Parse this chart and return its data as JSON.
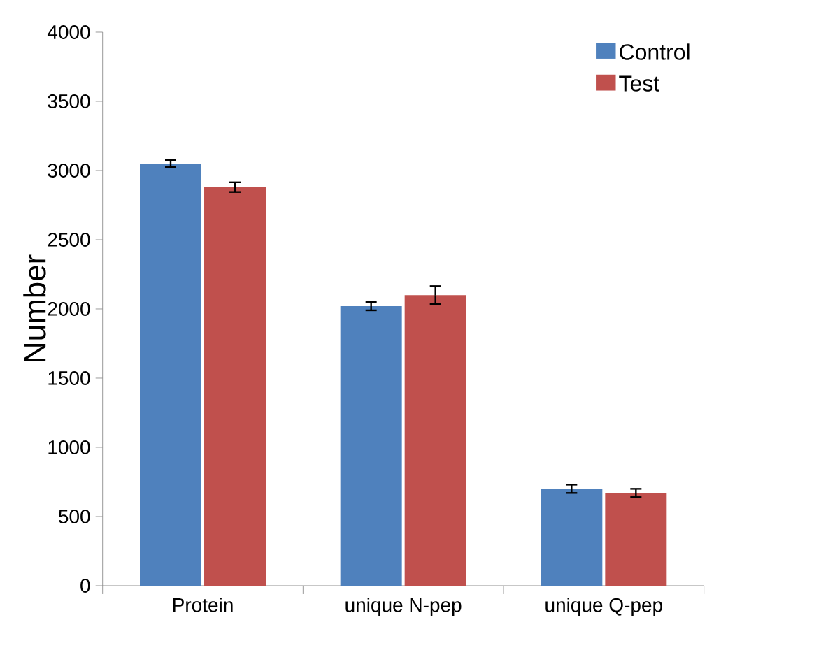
{
  "chart_data": {
    "type": "bar",
    "ylabel": "Number",
    "categories": [
      "Protein",
      "unique N-pep",
      "unique Q-pep"
    ],
    "series": [
      {
        "name": "Control",
        "color": "#4f81bd",
        "values": [
          3050,
          2020,
          700
        ],
        "errors": [
          25,
          30,
          30
        ]
      },
      {
        "name": "Test",
        "color": "#c0504d",
        "values": [
          2880,
          2100,
          670
        ],
        "errors": [
          35,
          65,
          30
        ]
      }
    ],
    "ylim": [
      0,
      4000
    ],
    "yticks": [
      0,
      500,
      1000,
      1500,
      2000,
      2500,
      3000,
      3500,
      4000
    ],
    "grid": false,
    "legend": "top right"
  }
}
